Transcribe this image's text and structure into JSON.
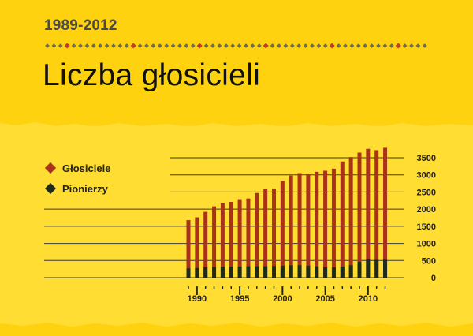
{
  "header": {
    "years": "1989-2012",
    "title": "Liczba głosicieli"
  },
  "legend": [
    {
      "label": "Głosiciele",
      "color": "#a8321a"
    },
    {
      "label": "Pionierzy",
      "color": "#1e2a1b"
    }
  ],
  "colors": {
    "background": "#ffd31a",
    "publishers": "#a8321a",
    "pioneers": "#1e2a1b",
    "grid": "#3d3d2e",
    "decoration_diamond": "#c0392b",
    "decoration_dot": "#6b6b5a"
  },
  "chart_data": {
    "type": "bar",
    "stacked_overlay": true,
    "x": [
      1989,
      1990,
      1991,
      1992,
      1993,
      1994,
      1995,
      1996,
      1997,
      1998,
      1999,
      2000,
      2001,
      2002,
      2003,
      2004,
      2005,
      2006,
      2007,
      2008,
      2009,
      2010,
      2011,
      2012
    ],
    "series": [
      {
        "name": "Głosiciele",
        "values": [
          1680,
          1760,
          1920,
          2080,
          2180,
          2210,
          2290,
          2310,
          2470,
          2580,
          2590,
          2820,
          2980,
          3050,
          3020,
          3090,
          3120,
          3180,
          3390,
          3520,
          3650,
          3760,
          3720,
          3790
        ]
      },
      {
        "name": "Pionierzy",
        "values": [
          270,
          280,
          300,
          310,
          320,
          320,
          320,
          330,
          330,
          330,
          340,
          350,
          360,
          360,
          350,
          330,
          300,
          300,
          320,
          360,
          460,
          530,
          520,
          520
        ]
      }
    ],
    "ylim": [
      0,
      3900
    ],
    "yticks": [
      "0",
      "500",
      "1000",
      "1500",
      "2000",
      "2500",
      "3000",
      "3500"
    ],
    "xticks": [
      "1990",
      "1995",
      "2000",
      "2005",
      "2010"
    ],
    "grid": true,
    "legend_position": "left"
  }
}
